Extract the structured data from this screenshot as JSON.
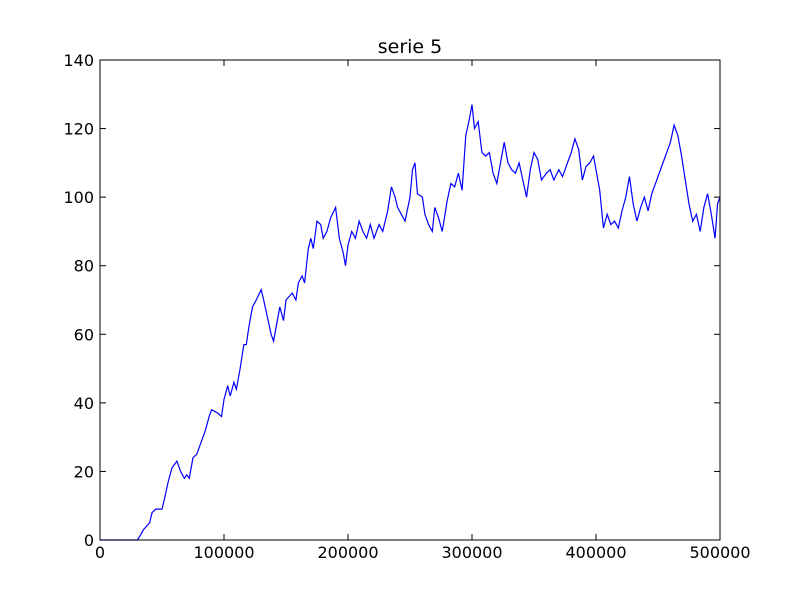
{
  "chart_data": {
    "type": "line",
    "title": "serie 5",
    "x": [
      0,
      10000,
      20000,
      30000,
      32000,
      35000,
      40000,
      42000,
      45000,
      50000,
      52000,
      55000,
      58000,
      62000,
      65000,
      68000,
      70000,
      72000,
      75000,
      78000,
      80000,
      85000,
      88000,
      90000,
      95000,
      98000,
      100000,
      103000,
      105000,
      108000,
      110000,
      113000,
      116000,
      118000,
      120000,
      123000,
      126000,
      130000,
      132000,
      135000,
      138000,
      140000,
      145000,
      148000,
      150000,
      155000,
      158000,
      160000,
      163000,
      165000,
      168000,
      170000,
      172000,
      175000,
      178000,
      180000,
      183000,
      186000,
      190000,
      193000,
      196000,
      198000,
      200000,
      203000,
      206000,
      209000,
      212000,
      215000,
      218000,
      221000,
      225000,
      228000,
      232000,
      235000,
      238000,
      240000,
      243000,
      246000,
      250000,
      252000,
      254000,
      256000,
      260000,
      262000,
      265000,
      268000,
      270000,
      273000,
      276000,
      280000,
      283000,
      286000,
      289000,
      292000,
      295000,
      298000,
      300000,
      302000,
      305000,
      308000,
      311000,
      314000,
      317000,
      320000,
      323000,
      326000,
      329000,
      332000,
      335000,
      338000,
      341000,
      344000,
      347000,
      350000,
      353000,
      356000,
      360000,
      363000,
      366000,
      370000,
      373000,
      376000,
      380000,
      383000,
      386000,
      389000,
      392000,
      395000,
      398000,
      400000,
      403000,
      406000,
      409000,
      412000,
      415000,
      418000,
      421000,
      424000,
      427000,
      430000,
      433000,
      436000,
      439000,
      442000,
      445000,
      448000,
      451000,
      454000,
      457000,
      460000,
      463000,
      466000,
      469000,
      472000,
      475000,
      478000,
      481000,
      484000,
      487000,
      490000,
      493000,
      496000,
      498000,
      500000
    ],
    "series": [
      {
        "color": "#0000ff",
        "values": [
          0,
          0,
          0,
          0,
          1,
          3,
          5,
          8,
          9,
          9,
          12,
          17,
          21,
          23,
          20,
          18,
          19,
          18,
          24,
          25,
          27,
          32,
          36,
          38,
          37,
          36,
          41,
          45,
          42,
          46,
          44,
          50,
          57,
          57,
          62,
          68,
          70,
          73,
          70,
          65,
          60,
          58,
          68,
          64,
          70,
          72,
          70,
          75,
          77,
          75,
          85,
          88,
          85,
          93,
          92,
          88,
          90,
          94,
          97,
          88,
          84,
          80,
          86,
          90,
          88,
          93,
          90,
          88,
          92,
          88,
          92,
          90,
          96,
          103,
          100,
          97,
          95,
          93,
          100,
          108,
          110,
          101,
          100,
          95,
          92,
          90,
          97,
          94,
          90,
          99,
          104,
          103,
          107,
          102,
          118,
          123,
          127,
          120,
          122,
          113,
          112,
          113,
          107,
          104,
          110,
          116,
          110,
          108,
          107,
          110,
          105,
          100,
          108,
          113,
          111,
          105,
          107,
          108,
          105,
          108,
          106,
          109,
          113,
          117,
          114,
          105,
          109,
          110,
          112,
          108,
          102,
          91,
          95,
          92,
          93,
          91,
          96,
          100,
          106,
          98,
          93,
          97,
          100,
          96,
          101,
          104,
          107,
          110,
          113,
          116,
          121,
          118,
          112,
          105,
          98,
          93,
          95,
          90,
          97,
          101,
          95,
          88,
          98,
          100
        ]
      }
    ],
    "xlim": [
      0,
      500000
    ],
    "xticks": [
      0,
      100000,
      200000,
      300000,
      400000,
      500000
    ],
    "ylim": [
      0,
      140
    ],
    "yticks": [
      0,
      20,
      40,
      60,
      80,
      100,
      120,
      140
    ],
    "grid": false
  }
}
